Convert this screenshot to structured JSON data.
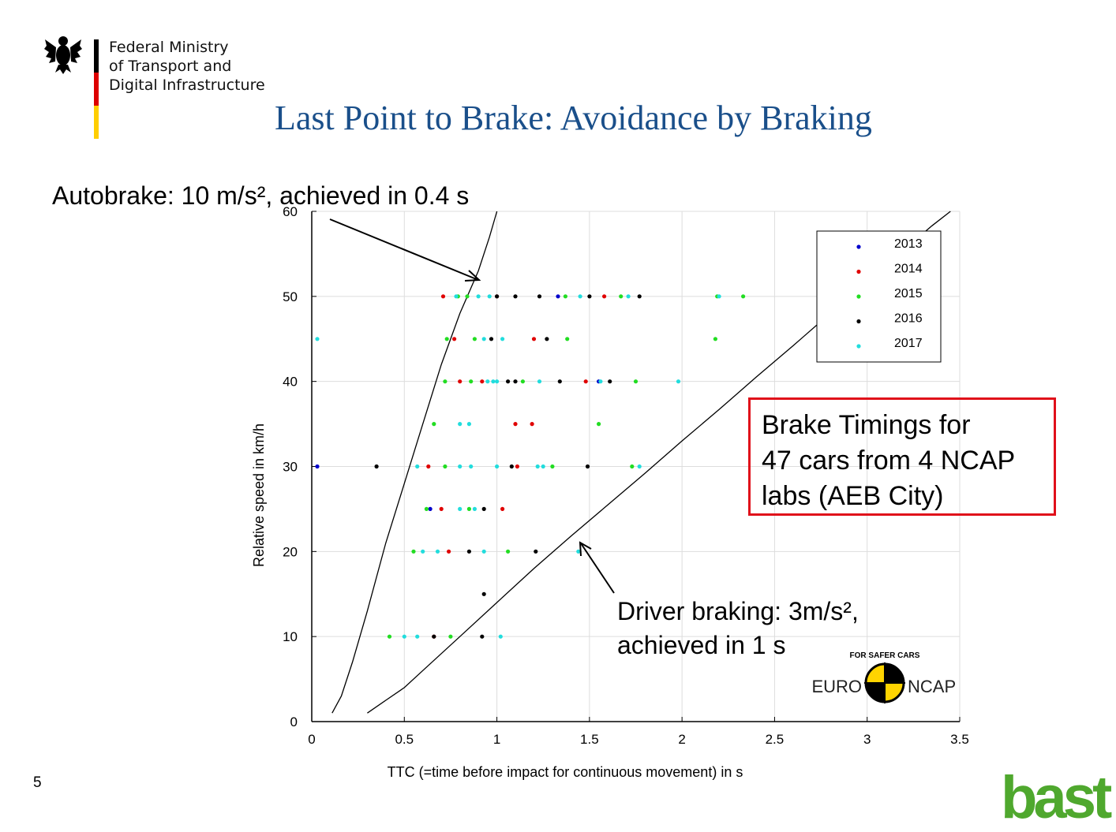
{
  "header": {
    "ministry_lines": [
      "Federal Ministry",
      "of Transport and",
      "Digital Infrastructure"
    ],
    "flag_colors": [
      "#000000",
      "#dd0000",
      "#ffce00"
    ],
    "eagle_icon": "federal-eagle-icon"
  },
  "title": "Last Point to Brake: Avoidance by Braking",
  "title_color": "#1a4f8a",
  "annotations": {
    "autobrake": "Autobrake: 10 m/s², achieved in 0.4 s",
    "driver_line1": "Driver braking: 3m/s²,",
    "driver_line2": "achieved in 1 s",
    "box_lines": [
      "Brake Timings for",
      "47 cars from 4 NCAP",
      "labs (AEB City)"
    ],
    "box_color": "#e0101a"
  },
  "euroncap": {
    "left": "EURO",
    "right": "NCAP",
    "arc": "FOR SAFER CARS"
  },
  "slide_number": "5",
  "bast_logo": "bast",
  "chart_data": {
    "type": "scatter",
    "xlabel": "TTC (=time before impact for continuous movement) in s",
    "ylabel": "Relative speed in km/h",
    "xlim": [
      0,
      3.5
    ],
    "ylim": [
      0,
      60
    ],
    "xticks": [
      "0",
      "0.5",
      "1",
      "1.5",
      "2",
      "2.5",
      "3",
      "3.5"
    ],
    "yticks": [
      "0",
      "10",
      "20",
      "30",
      "40",
      "50",
      "60"
    ],
    "grid": true,
    "legend_position": "top-right",
    "series": [
      {
        "name": "2013",
        "color": "#0000cc",
        "points": [
          [
            0.03,
            30
          ],
          [
            0.64,
            25
          ],
          [
            1.33,
            50
          ],
          [
            1.55,
            40
          ]
        ]
      },
      {
        "name": "2014",
        "color": "#e00000",
        "points": [
          [
            0.71,
            50
          ],
          [
            0.77,
            45
          ],
          [
            0.8,
            40
          ],
          [
            0.63,
            30
          ],
          [
            0.7,
            25
          ],
          [
            1.03,
            25
          ],
          [
            1.1,
            35
          ],
          [
            1.19,
            35
          ],
          [
            1.2,
            45
          ],
          [
            0.92,
            40
          ],
          [
            1.48,
            40
          ],
          [
            1.58,
            50
          ],
          [
            1.11,
            30
          ],
          [
            0.66,
            10
          ],
          [
            1.0,
            50
          ],
          [
            0.74,
            20
          ]
        ]
      },
      {
        "name": "2015",
        "color": "#22dd22",
        "points": [
          [
            0.79,
            50
          ],
          [
            0.84,
            50
          ],
          [
            0.73,
            45
          ],
          [
            0.88,
            45
          ],
          [
            0.72,
            40
          ],
          [
            0.86,
            40
          ],
          [
            0.66,
            35
          ],
          [
            0.72,
            30
          ],
          [
            0.62,
            25
          ],
          [
            0.55,
            20
          ],
          [
            0.42,
            10
          ],
          [
            1.38,
            45
          ],
          [
            1.75,
            40
          ],
          [
            1.55,
            35
          ],
          [
            1.73,
            30
          ],
          [
            2.19,
            50
          ],
          [
            2.33,
            50
          ],
          [
            2.18,
            45
          ],
          [
            1.3,
            30
          ],
          [
            1.14,
            40
          ],
          [
            0.85,
            25
          ],
          [
            1.06,
            20
          ],
          [
            0.75,
            10
          ],
          [
            1.37,
            50
          ],
          [
            1.67,
            50
          ]
        ]
      },
      {
        "name": "2016",
        "color": "#000000",
        "points": [
          [
            0.35,
            30
          ],
          [
            0.97,
            45
          ],
          [
            1.27,
            45
          ],
          [
            1.1,
            50
          ],
          [
            1.5,
            50
          ],
          [
            1.77,
            50
          ],
          [
            1.06,
            40
          ],
          [
            1.34,
            40
          ],
          [
            1.61,
            40
          ],
          [
            1.49,
            30
          ],
          [
            0.93,
            25
          ],
          [
            1.21,
            20
          ],
          [
            0.93,
            15
          ],
          [
            0.92,
            10
          ],
          [
            1.23,
            50
          ],
          [
            0.66,
            10
          ],
          [
            1.08,
            30
          ],
          [
            0.85,
            20
          ],
          [
            1.1,
            40
          ],
          [
            1.0,
            50
          ]
        ]
      },
      {
        "name": "2017",
        "color": "#22dddd",
        "points": [
          [
            0.03,
            45
          ],
          [
            0.9,
            50
          ],
          [
            0.96,
            50
          ],
          [
            1.45,
            50
          ],
          [
            1.71,
            50
          ],
          [
            2.2,
            50
          ],
          [
            0.93,
            45
          ],
          [
            1.03,
            45
          ],
          [
            0.95,
            40
          ],
          [
            1.0,
            40
          ],
          [
            1.23,
            40
          ],
          [
            1.56,
            40
          ],
          [
            1.98,
            40
          ],
          [
            0.8,
            35
          ],
          [
            0.85,
            35
          ],
          [
            0.57,
            30
          ],
          [
            0.8,
            30
          ],
          [
            0.86,
            30
          ],
          [
            1.0,
            30
          ],
          [
            1.22,
            30
          ],
          [
            1.77,
            30
          ],
          [
            0.8,
            25
          ],
          [
            0.88,
            25
          ],
          [
            0.6,
            20
          ],
          [
            0.68,
            20
          ],
          [
            0.93,
            20
          ],
          [
            1.44,
            20
          ],
          [
            0.5,
            10
          ],
          [
            0.57,
            10
          ],
          [
            1.02,
            10
          ],
          [
            0.78,
            50
          ],
          [
            1.25,
            30
          ],
          [
            0.98,
            40
          ]
        ]
      }
    ],
    "curves": [
      {
        "name": "Autobrake",
        "points": [
          [
            0.11,
            1
          ],
          [
            0.16,
            3
          ],
          [
            0.22,
            7
          ],
          [
            0.3,
            13
          ],
          [
            0.4,
            21
          ],
          [
            0.5,
            28
          ],
          [
            0.6,
            35
          ],
          [
            0.7,
            42
          ],
          [
            0.8,
            48
          ],
          [
            0.9,
            53
          ],
          [
            0.96,
            57
          ],
          [
            1.0,
            60
          ]
        ]
      },
      {
        "name": "Driver braking",
        "points": [
          [
            0.3,
            1
          ],
          [
            0.4,
            2.5
          ],
          [
            0.5,
            4
          ],
          [
            0.6,
            6
          ],
          [
            0.8,
            10
          ],
          [
            1.0,
            14
          ],
          [
            1.2,
            18
          ],
          [
            1.4,
            21.8
          ],
          [
            1.6,
            25.5
          ],
          [
            1.8,
            29.2
          ],
          [
            2.0,
            33
          ],
          [
            2.2,
            36.7
          ],
          [
            2.4,
            40.5
          ],
          [
            2.6,
            44.2
          ],
          [
            2.8,
            48
          ],
          [
            3.0,
            51.7
          ],
          [
            3.2,
            55.5
          ],
          [
            3.35,
            58.3
          ],
          [
            3.45,
            60
          ]
        ]
      }
    ]
  }
}
